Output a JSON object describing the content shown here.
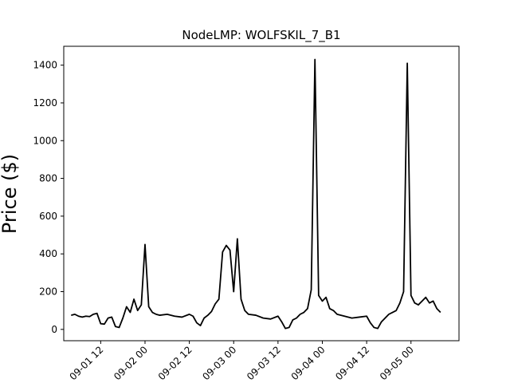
{
  "chart_data": {
    "type": "line",
    "title": "NodeLMP: WOLFSKIL_7_B1",
    "xlabel": "",
    "ylabel": "Price ($)",
    "x_axis_type": "datetime",
    "xlim": [
      "2019-09-01T02:00",
      "2019-09-05T13:00"
    ],
    "ylim": [
      -60,
      1500
    ],
    "grid": false,
    "legend": "none",
    "line_color": "#000000",
    "x_ticks": [
      {
        "value": "2019-09-01T12:00",
        "label": "09-01 12"
      },
      {
        "value": "2019-09-02T00:00",
        "label": "09-02 00"
      },
      {
        "value": "2019-09-02T12:00",
        "label": "09-02 12"
      },
      {
        "value": "2019-09-03T00:00",
        "label": "09-03 00"
      },
      {
        "value": "2019-09-03T12:00",
        "label": "09-03 12"
      },
      {
        "value": "2019-09-04T00:00",
        "label": "09-04 00"
      },
      {
        "value": "2019-09-04T12:00",
        "label": "09-04 12"
      },
      {
        "value": "2019-09-05T00:00",
        "label": "09-05 00"
      }
    ],
    "y_ticks": [
      0,
      200,
      400,
      600,
      800,
      1000,
      1200,
      1400
    ],
    "series": [
      {
        "x": [
          "2019-09-01T04:00",
          "2019-09-01T05:00",
          "2019-09-01T06:00",
          "2019-09-01T07:00",
          "2019-09-01T08:00",
          "2019-09-01T09:00",
          "2019-09-01T10:00",
          "2019-09-01T11:00",
          "2019-09-01T12:00",
          "2019-09-01T13:00",
          "2019-09-01T14:00",
          "2019-09-01T15:00",
          "2019-09-01T16:00",
          "2019-09-01T17:00",
          "2019-09-01T18:00",
          "2019-09-01T19:00",
          "2019-09-01T20:00",
          "2019-09-01T21:00",
          "2019-09-01T22:00",
          "2019-09-01T23:00",
          "2019-09-02T00:00",
          "2019-09-02T01:00",
          "2019-09-02T02:00",
          "2019-09-02T03:00",
          "2019-09-02T04:00",
          "2019-09-02T06:00",
          "2019-09-02T08:00",
          "2019-09-02T10:00",
          "2019-09-02T12:00",
          "2019-09-02T13:00",
          "2019-09-02T14:00",
          "2019-09-02T15:00",
          "2019-09-02T16:00",
          "2019-09-02T17:00",
          "2019-09-02T18:00",
          "2019-09-02T19:00",
          "2019-09-02T20:00",
          "2019-09-02T21:00",
          "2019-09-02T22:00",
          "2019-09-02T23:00",
          "2019-09-03T00:00",
          "2019-09-03T01:00",
          "2019-09-03T02:00",
          "2019-09-03T03:00",
          "2019-09-03T04:00",
          "2019-09-03T06:00",
          "2019-09-03T08:00",
          "2019-09-03T10:00",
          "2019-09-03T12:00",
          "2019-09-03T13:00",
          "2019-09-03T14:00",
          "2019-09-03T15:00",
          "2019-09-03T16:00",
          "2019-09-03T17:00",
          "2019-09-03T18:00",
          "2019-09-03T19:00",
          "2019-09-03T20:00",
          "2019-09-03T21:00",
          "2019-09-03T22:00",
          "2019-09-03T23:00",
          "2019-09-04T00:00",
          "2019-09-04T01:00",
          "2019-09-04T02:00",
          "2019-09-04T03:00",
          "2019-09-04T04:00",
          "2019-09-04T06:00",
          "2019-09-04T08:00",
          "2019-09-04T10:00",
          "2019-09-04T12:00",
          "2019-09-04T13:00",
          "2019-09-04T14:00",
          "2019-09-04T15:00",
          "2019-09-04T16:00",
          "2019-09-04T17:00",
          "2019-09-04T18:00",
          "2019-09-04T19:00",
          "2019-09-04T20:00",
          "2019-09-04T21:00",
          "2019-09-04T22:00",
          "2019-09-04T23:00",
          "2019-09-05T00:00",
          "2019-09-05T01:00",
          "2019-09-05T02:00",
          "2019-09-05T03:00",
          "2019-09-05T04:00",
          "2019-09-05T05:00",
          "2019-09-05T06:00",
          "2019-09-05T07:00",
          "2019-09-05T08:00"
        ],
        "y": [
          75,
          80,
          70,
          65,
          70,
          68,
          80,
          85,
          30,
          28,
          60,
          65,
          15,
          10,
          60,
          120,
          90,
          160,
          100,
          130,
          450,
          120,
          90,
          80,
          75,
          80,
          70,
          65,
          80,
          70,
          35,
          20,
          60,
          75,
          95,
          135,
          160,
          410,
          445,
          420,
          200,
          480,
          160,
          100,
          80,
          75,
          60,
          55,
          70,
          40,
          5,
          10,
          50,
          60,
          80,
          90,
          110,
          210,
          1430,
          180,
          150,
          170,
          110,
          100,
          80,
          70,
          60,
          65,
          70,
          35,
          10,
          5,
          40,
          60,
          80,
          90,
          100,
          140,
          200,
          1410,
          180,
          140,
          130,
          150,
          170,
          140,
          150,
          110,
          90
        ]
      }
    ]
  }
}
